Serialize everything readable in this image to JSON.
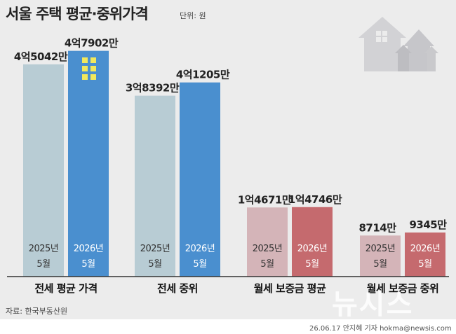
{
  "header": {
    "title": "서울 주택 평균·중위가격",
    "unit": "단위: 원"
  },
  "footer": {
    "source": "자료: 한국부동산원",
    "credit": "26.06.17 안지혜 기자 hokma@newsis.com",
    "watermark": "뉴시스"
  },
  "colors": {
    "background": "#ececec",
    "jeonse_2025": "#b8ccd4",
    "jeonse_2026": "#4a8fcf",
    "wolse_2025": "#d4b4b8",
    "wolse_2026": "#c56a6e",
    "house_icon": "#cfcfd2"
  },
  "chart_data": {
    "type": "bar",
    "categories": [
      "전세 평균 가격",
      "전세 중위",
      "월세 보증금 평균",
      "월세 보증금 중위"
    ],
    "period_labels": [
      [
        "2025년",
        "5월"
      ],
      [
        "2026년",
        "5월"
      ]
    ],
    "value_labels": [
      [
        "4억5042만",
        "4억7902만"
      ],
      [
        "3억8392만",
        "4억1205만"
      ],
      [
        "1억4671만",
        "1억4746만"
      ],
      [
        "8714만",
        "9345만"
      ]
    ],
    "series": [
      {
        "values": [
          450420000,
          383920000,
          146710000,
          87140000
        ]
      },
      {
        "values": [
          479020000,
          412050000,
          147460000,
          93450000
        ]
      }
    ],
    "ylim": [
      0,
      480000000
    ]
  }
}
